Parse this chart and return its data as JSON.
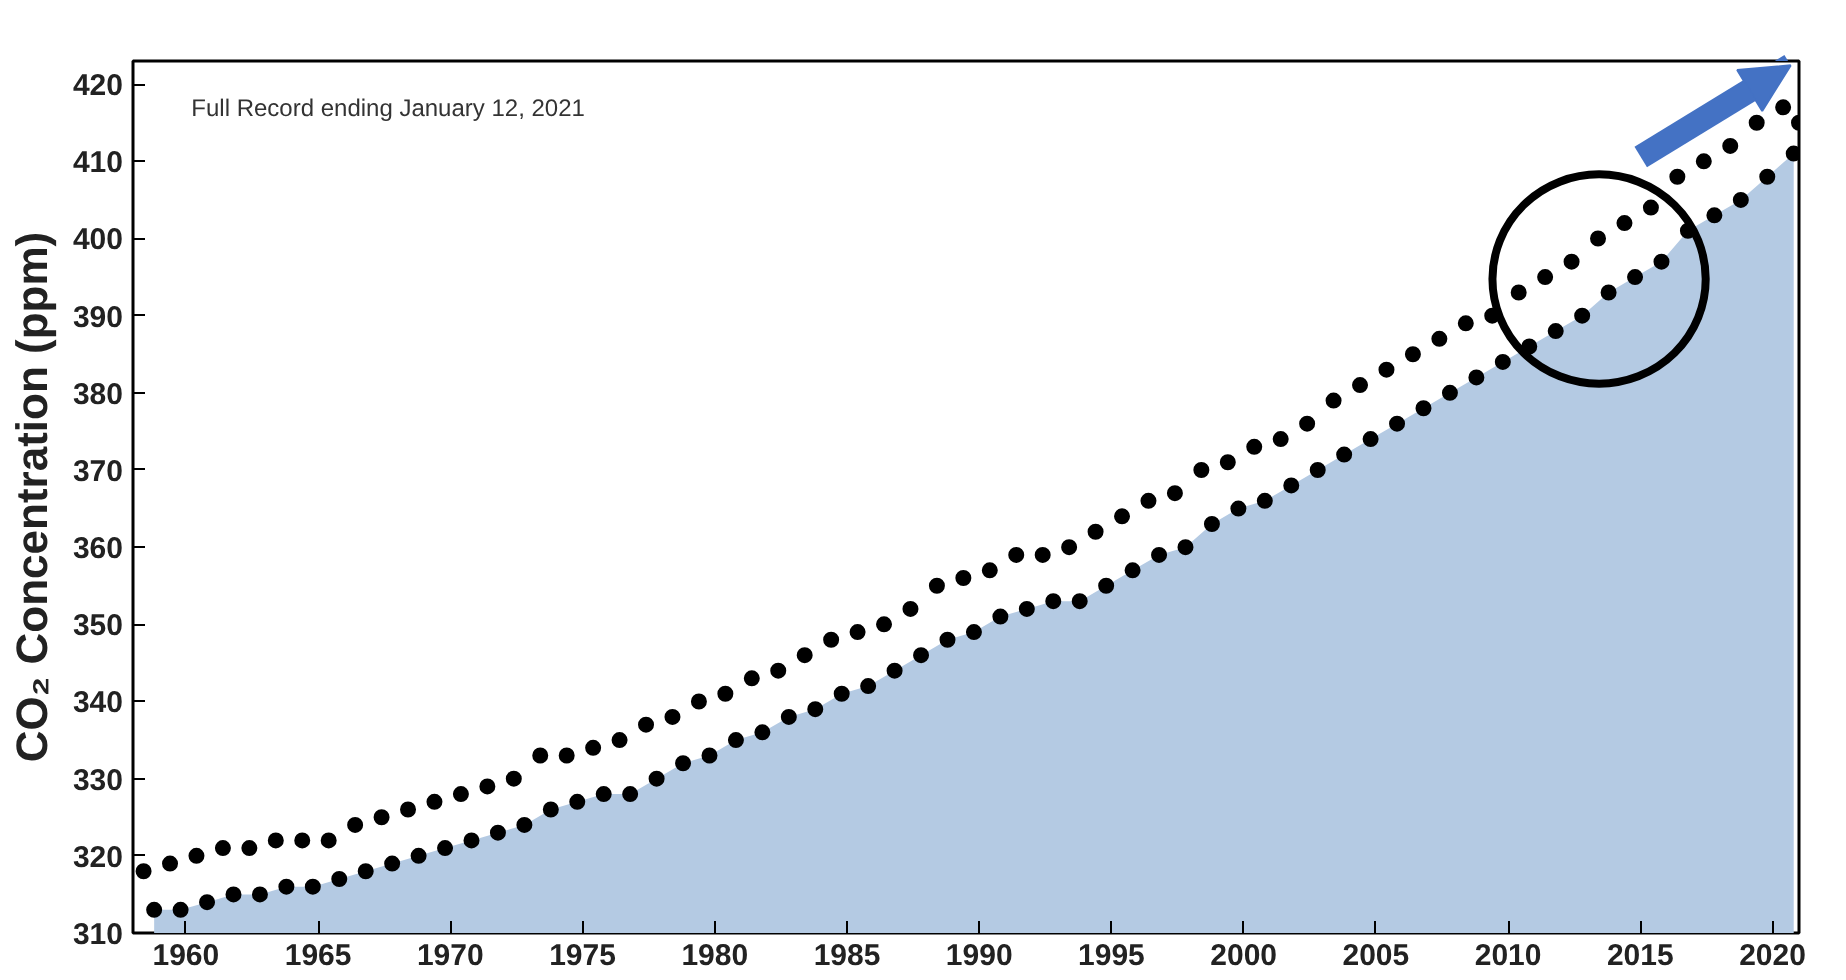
{
  "chart_data": {
    "type": "scatter",
    "ylabel": "CO₂ Concentration (ppm)",
    "annotations": [
      "Full Record ending January 12, 2021"
    ],
    "xlim": [
      1958,
      2021
    ],
    "ylim": [
      310,
      423
    ],
    "xticks": [
      1960,
      1965,
      1970,
      1975,
      1980,
      1985,
      1990,
      1995,
      2000,
      2005,
      2010,
      2015,
      2020
    ],
    "yticks": [
      310,
      320,
      330,
      340,
      350,
      360,
      370,
      380,
      390,
      400,
      410,
      420
    ],
    "grid": false,
    "series": [
      {
        "type": "area",
        "color": "#b4cae3",
        "x": [
          1958.8,
          1959.8,
          1960.8,
          1961.8,
          1962.8,
          1963.8,
          1964.8,
          1965.8,
          1966.8,
          1967.8,
          1968.8,
          1969.8,
          1970.8,
          1971.8,
          1972.8,
          1973.8,
          1974.8,
          1975.8,
          1976.8,
          1977.8,
          1978.8,
          1979.8,
          1980.8,
          1981.8,
          1982.8,
          1983.8,
          1984.8,
          1985.8,
          1986.8,
          1987.8,
          1988.8,
          1989.8,
          1990.8,
          1991.8,
          1992.8,
          1993.8,
          1994.8,
          1995.8,
          1996.8,
          1997.8,
          1998.8,
          1999.8,
          2000.8,
          2001.8,
          2002.8,
          2003.8,
          2004.8,
          2005.8,
          2006.8,
          2007.8,
          2008.8,
          2009.8,
          2010.8,
          2011.8,
          2012.8,
          2013.8,
          2014.8,
          2015.8,
          2016.8,
          2017.8,
          2018.8,
          2019.8,
          2020.8
        ],
        "values": [
          313,
          313,
          314,
          315,
          315,
          316,
          316,
          317,
          318,
          319,
          320,
          321,
          322,
          323,
          324,
          326,
          327,
          328,
          328,
          330,
          332,
          333,
          335,
          336,
          338,
          339,
          341,
          342,
          344,
          346,
          348,
          349,
          351,
          352,
          353,
          353,
          355,
          357,
          359,
          360,
          363,
          365,
          366,
          368,
          370,
          372,
          374,
          376,
          378,
          380,
          382,
          384,
          386,
          388,
          390,
          393,
          395,
          397,
          401,
          403,
          405,
          408,
          411
        ]
      },
      {
        "marker": "circle",
        "color": "#000000",
        "x": [
          1958.4,
          1958.8,
          1959.4,
          1959.8,
          1960.4,
          1960.8,
          1961.4,
          1961.8,
          1962.4,
          1962.8,
          1963.4,
          1963.8,
          1964.4,
          1964.8,
          1965.4,
          1965.8,
          1966.4,
          1966.8,
          1967.4,
          1967.8,
          1968.4,
          1968.8,
          1969.4,
          1969.8,
          1970.4,
          1970.8,
          1971.4,
          1971.8,
          1972.4,
          1972.8,
          1973.4,
          1973.8,
          1974.4,
          1974.8,
          1975.4,
          1975.8,
          1976.4,
          1976.8,
          1977.4,
          1977.8,
          1978.4,
          1978.8,
          1979.4,
          1979.8,
          1980.4,
          1980.8,
          1981.4,
          1981.8,
          1982.4,
          1982.8,
          1983.4,
          1983.8,
          1984.4,
          1984.8,
          1985.4,
          1985.8,
          1986.4,
          1986.8,
          1987.4,
          1987.8,
          1988.4,
          1988.8,
          1989.4,
          1989.8,
          1990.4,
          1990.8,
          1991.4,
          1991.8,
          1992.4,
          1992.8,
          1993.4,
          1993.8,
          1994.4,
          1994.8,
          1995.4,
          1995.8,
          1996.4,
          1996.8,
          1997.4,
          1997.8,
          1998.4,
          1998.8,
          1999.4,
          1999.8,
          2000.4,
          2000.8,
          2001.4,
          2001.8,
          2002.4,
          2002.8,
          2003.4,
          2003.8,
          2004.4,
          2004.8,
          2005.4,
          2005.8,
          2006.4,
          2006.8,
          2007.4,
          2007.8,
          2008.4,
          2008.8,
          2009.4,
          2009.8,
          2010.4,
          2010.8,
          2011.4,
          2011.8,
          2012.4,
          2012.8,
          2013.4,
          2013.8,
          2014.4,
          2014.8,
          2015.4,
          2015.8,
          2016.4,
          2016.8,
          2017.4,
          2017.8,
          2018.4,
          2018.8,
          2019.4,
          2019.8,
          2020.4,
          2020.8,
          2021.0
        ],
        "values": [
          318,
          313,
          319,
          313,
          320,
          314,
          321,
          315,
          321,
          315,
          322,
          316,
          322,
          316,
          322,
          317,
          324,
          318,
          325,
          319,
          326,
          320,
          327,
          321,
          328,
          322,
          329,
          323,
          330,
          324,
          333,
          326,
          333,
          327,
          334,
          328,
          335,
          328,
          337,
          330,
          338,
          332,
          340,
          333,
          341,
          335,
          343,
          336,
          344,
          338,
          346,
          339,
          348,
          341,
          349,
          342,
          350,
          344,
          352,
          346,
          355,
          348,
          356,
          349,
          357,
          351,
          359,
          352,
          359,
          353,
          360,
          353,
          362,
          355,
          364,
          357,
          366,
          359,
          367,
          360,
          370,
          363,
          371,
          365,
          373,
          366,
          374,
          368,
          376,
          370,
          379,
          372,
          381,
          374,
          383,
          376,
          385,
          378,
          387,
          380,
          389,
          382,
          390,
          384,
          393,
          386,
          395,
          388,
          397,
          390,
          400,
          393,
          402,
          395,
          404,
          397,
          408,
          401,
          410,
          403,
          412,
          405,
          415,
          408,
          417,
          411,
          415
        ]
      }
    ]
  }
}
